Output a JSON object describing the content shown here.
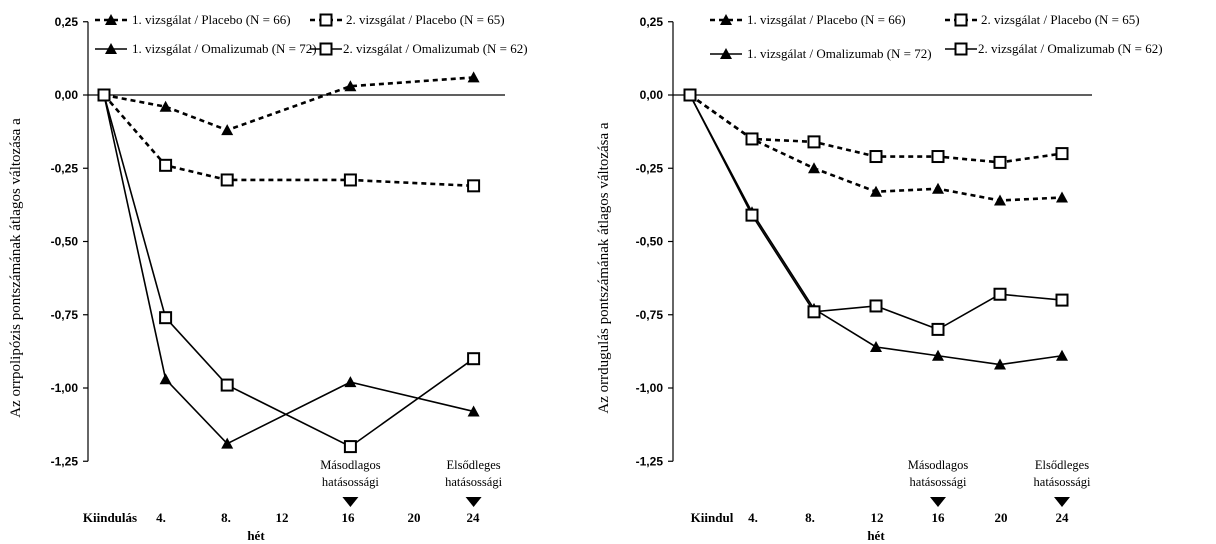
{
  "chart_data": [
    {
      "type": "line",
      "title": "",
      "xlabel": "hét",
      "ylabel": "Az orrpolipózis pontszámának átlagos változása a",
      "ylim": [
        -1.25,
        0.25
      ],
      "yticks": [
        "0,25",
        "0,00",
        "-0,25",
        "-0,50",
        "-0,75",
        "-1,00",
        "-1,25"
      ],
      "ytick_values": [
        0.25,
        0,
        -0.25,
        -0.5,
        -0.75,
        -1.0,
        -1.25
      ],
      "x": [
        0,
        4,
        8,
        12,
        16,
        20,
        24
      ],
      "xtick_labels": [
        "Kiindulás",
        "4.",
        "8.",
        "12",
        "16",
        "20",
        "24"
      ],
      "series": [
        {
          "name": "1. vizsgálat / Placebo (N = 66)",
          "style": "dashed",
          "marker": "triangle",
          "x": [
            0,
            4,
            8,
            16,
            24
          ],
          "values": [
            0.0,
            -0.04,
            -0.12,
            0.03,
            0.06
          ]
        },
        {
          "name": "2. vizsgálat / Placebo (N = 65)",
          "style": "dashed",
          "marker": "square",
          "x": [
            0,
            4,
            8,
            16,
            24
          ],
          "values": [
            0.0,
            -0.24,
            -0.29,
            -0.29,
            -0.31
          ]
        },
        {
          "name": "1. vizsgálat / Omalizumab (N = 72)",
          "style": "solid",
          "marker": "triangle",
          "x": [
            0,
            4,
            8,
            16,
            24
          ],
          "values": [
            0.0,
            -0.97,
            -1.19,
            -0.98,
            -1.08
          ]
        },
        {
          "name": "2. vizsgálat / Omalizumab (N = 62)",
          "style": "solid",
          "marker": "square",
          "x": [
            0,
            4,
            8,
            16,
            24
          ],
          "values": [
            0.0,
            -0.76,
            -0.99,
            -1.2,
            -0.9
          ]
        }
      ],
      "annotations": [
        {
          "x": 16,
          "lines": [
            "Másodlagos",
            "hatásossági"
          ]
        },
        {
          "x": 24,
          "lines": [
            "Elsődleges",
            "hatásossági"
          ]
        }
      ]
    },
    {
      "type": "line",
      "title": "",
      "xlabel": "hét",
      "ylabel": "Az orrdugulás pontszámának átlagos változása a",
      "ylim": [
        -1.25,
        0.25
      ],
      "yticks": [
        "0,25",
        "0,00",
        "-0,25",
        "-0,50",
        "-0,75",
        "-1,00",
        "-1,25"
      ],
      "ytick_values": [
        0.25,
        0,
        -0.25,
        -0.5,
        -0.75,
        -1.0,
        -1.25
      ],
      "x": [
        0,
        4,
        8,
        12,
        16,
        20,
        24
      ],
      "xtick_labels": [
        "Kiindul",
        "4.",
        "8.",
        "12",
        "16",
        "20",
        "24"
      ],
      "series": [
        {
          "name": "1. vizsgálat / Placebo (N = 66)",
          "style": "dashed",
          "marker": "triangle",
          "x": [
            0,
            4,
            8,
            12,
            16,
            20,
            24
          ],
          "values": [
            0.0,
            -0.15,
            -0.25,
            -0.33,
            -0.32,
            -0.36,
            -0.35
          ]
        },
        {
          "name": "2. vizsgálat / Placebo (N = 65)",
          "style": "dashed",
          "marker": "square",
          "x": [
            0,
            4,
            8,
            12,
            16,
            20,
            24
          ],
          "values": [
            0.0,
            -0.15,
            -0.16,
            -0.21,
            -0.21,
            -0.23,
            -0.2
          ]
        },
        {
          "name": "1. vizsgálat / Omalizumab (N = 72)",
          "style": "solid",
          "marker": "triangle",
          "x": [
            0,
            4,
            8,
            12,
            16,
            20,
            24
          ],
          "values": [
            0.0,
            -0.4,
            -0.73,
            -0.86,
            -0.89,
            -0.92,
            -0.89
          ]
        },
        {
          "name": "2. vizsgálat / Omalizumab (N = 62)",
          "style": "solid",
          "marker": "square",
          "x": [
            0,
            4,
            8,
            12,
            16,
            20,
            24
          ],
          "values": [
            0.0,
            -0.41,
            -0.74,
            -0.72,
            -0.8,
            -0.68,
            -0.7
          ]
        }
      ],
      "annotations": [
        {
          "x": 16,
          "lines": [
            "Másodlagos",
            "hatásossági"
          ]
        },
        {
          "x": 24,
          "lines": [
            "Elsődleges",
            "hatásossági"
          ]
        }
      ]
    }
  ]
}
